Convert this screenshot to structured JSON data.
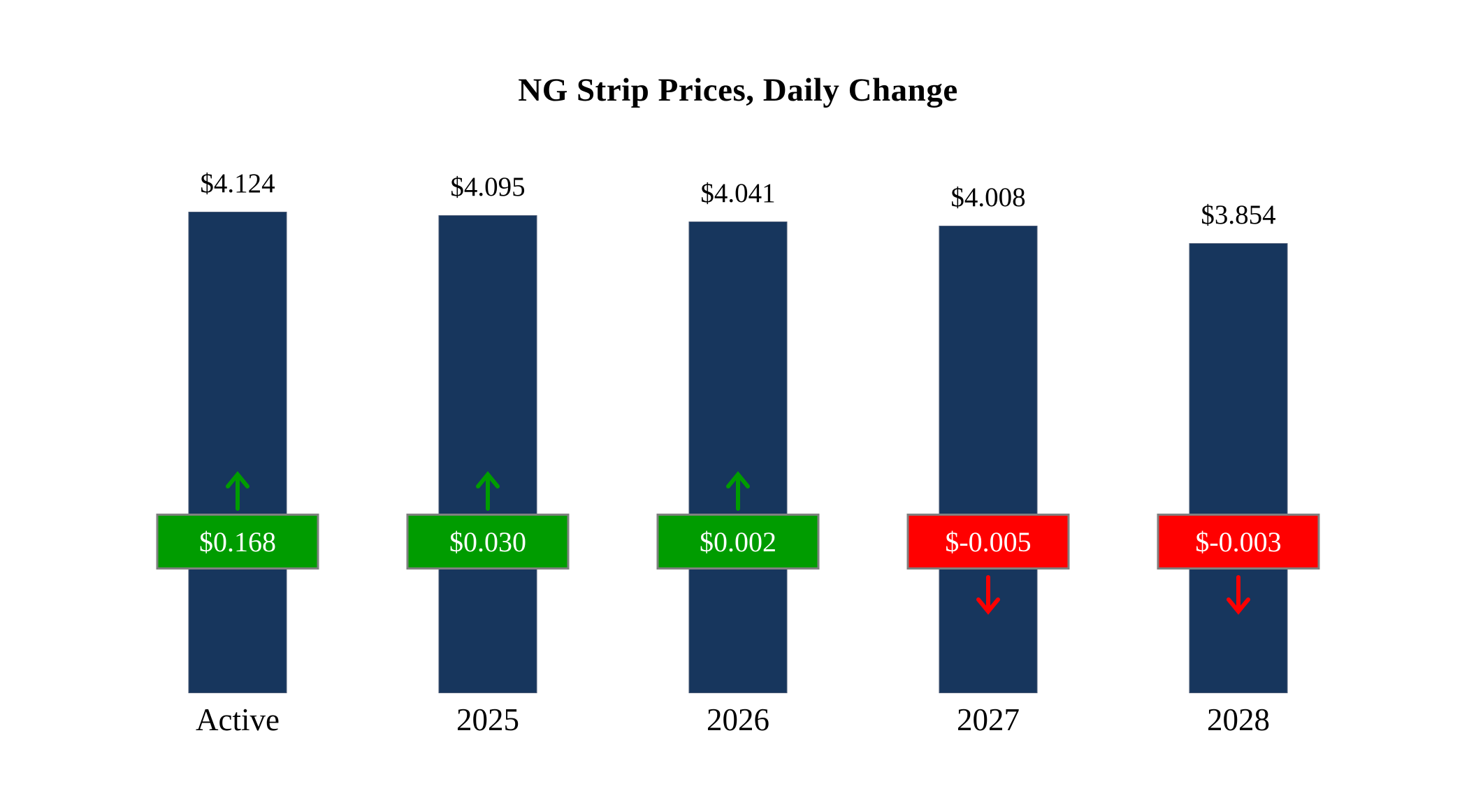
{
  "chart_data": {
    "type": "bar",
    "title": "NG Strip Prices, Daily Change",
    "categories": [
      "Active",
      "2025",
      "2026",
      "2027",
      "2028"
    ],
    "series": [
      {
        "name": "Strip Price",
        "values": [
          4.124,
          4.095,
          4.041,
          4.008,
          3.854
        ]
      },
      {
        "name": "Daily Change",
        "values": [
          0.168,
          0.03,
          0.002,
          -0.005,
          -0.003
        ]
      }
    ],
    "value_labels": [
      "$4.124",
      "$4.095",
      "$4.041",
      "$4.008",
      "$3.854"
    ],
    "change_labels": [
      "$0.168",
      "$0.030",
      "$0.002",
      "$-0.005",
      "$-0.003"
    ],
    "ylim": [
      0,
      5.9
    ],
    "grid": false,
    "legend": "none",
    "colors": {
      "bar": "#17365D",
      "positive": "#009C00",
      "negative": "#FF0000",
      "badge_border": "#808080",
      "badge_text": "#FFFFFF"
    }
  }
}
